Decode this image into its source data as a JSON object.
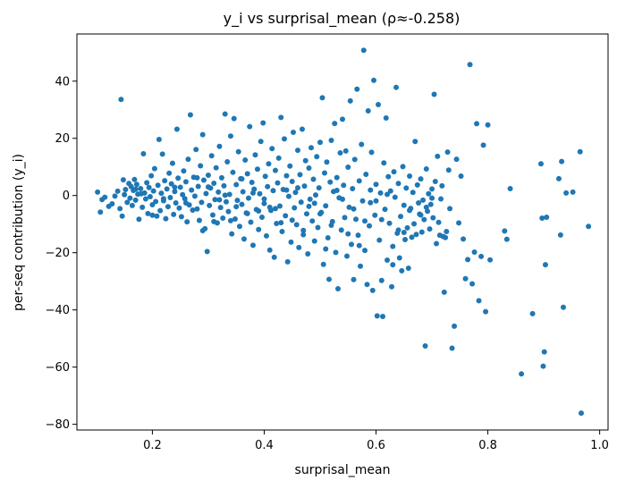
{
  "chart_data": {
    "type": "scatter",
    "title": "y_i vs surprisal_mean  (ρ≈-0.258)",
    "xlabel": "surprisal_mean",
    "ylabel": "per-seq contribution (y_i)",
    "xlim": [
      0.065,
      1.015
    ],
    "ylim": [
      -82,
      56.5
    ],
    "xticks": [
      0.2,
      0.4,
      0.6,
      0.8,
      1.0
    ],
    "xtick_labels": [
      "0.2",
      "0.4",
      "0.6",
      "0.8",
      "1.0"
    ],
    "yticks": [
      -80,
      -60,
      -40,
      -20,
      0,
      20,
      40
    ],
    "ytick_labels": [
      "−80",
      "−60",
      "−40",
      "−20",
      "0",
      "20",
      "40"
    ],
    "grid": false,
    "marker_color": "#1f77b4",
    "points": [
      [
        0.102,
        1.2
      ],
      [
        0.107,
        -5.8
      ],
      [
        0.11,
        -1.4
      ],
      [
        0.115,
        -0.6
      ],
      [
        0.122,
        -3.8
      ],
      [
        0.128,
        -2.9
      ],
      [
        0.133,
        -0.2
      ],
      [
        0.138,
        1.5
      ],
      [
        0.142,
        -4.6
      ],
      [
        0.144,
        33.6
      ],
      [
        0.146,
        -7.2
      ],
      [
        0.148,
        5.5
      ],
      [
        0.15,
        0.3
      ],
      [
        0.152,
        2.1
      ],
      [
        0.155,
        -2.4
      ],
      [
        0.158,
        4.2
      ],
      [
        0.16,
        -0.9
      ],
      [
        0.162,
        3.1
      ],
      [
        0.164,
        -3.5
      ],
      [
        0.166,
        1.8
      ],
      [
        0.168,
        5.6
      ],
      [
        0.17,
        -1.6
      ],
      [
        0.172,
        3.9
      ],
      [
        0.174,
        0.5
      ],
      [
        0.176,
        -8.3
      ],
      [
        0.179,
        2.4
      ],
      [
        0.182,
        -4.1
      ],
      [
        0.184,
        14.6
      ],
      [
        0.186,
        0.9
      ],
      [
        0.188,
        -1.2
      ],
      [
        0.19,
        4.5
      ],
      [
        0.192,
        -6.3
      ],
      [
        0.194,
        2.8
      ],
      [
        0.196,
        -0.4
      ],
      [
        0.198,
        6.9
      ],
      [
        0.2,
        -3.2
      ],
      [
        0.202,
        1.6
      ],
      [
        0.204,
        9.4
      ],
      [
        0.206,
        -2.1
      ],
      [
        0.208,
        -7.2
      ],
      [
        0.21,
        3.6
      ],
      [
        0.212,
        19.6
      ],
      [
        0.214,
        -5.3
      ],
      [
        0.216,
        0.8
      ],
      [
        0.218,
        14.5
      ],
      [
        0.22,
        -1.8
      ],
      [
        0.222,
        5.2
      ],
      [
        0.224,
        -8.1
      ],
      [
        0.226,
        2.3
      ],
      [
        0.228,
        -3.9
      ],
      [
        0.23,
        7.8
      ],
      [
        0.232,
        -0.7
      ],
      [
        0.234,
        4.1
      ],
      [
        0.236,
        11.3
      ],
      [
        0.238,
        -6.6
      ],
      [
        0.24,
        1.4
      ],
      [
        0.242,
        -2.6
      ],
      [
        0.244,
        23.2
      ],
      [
        0.246,
        6.1
      ],
      [
        0.248,
        -4.4
      ],
      [
        0.25,
        2.9
      ],
      [
        0.252,
        -7.4
      ],
      [
        0.254,
        0.3
      ],
      [
        0.256,
        8.6
      ],
      [
        0.258,
        -1.1
      ],
      [
        0.26,
        4.8
      ],
      [
        0.262,
        -9.2
      ],
      [
        0.264,
        12.7
      ],
      [
        0.266,
        -3.3
      ],
      [
        0.268,
        28.2
      ],
      [
        0.27,
        1.9
      ],
      [
        0.272,
        -5.1
      ],
      [
        0.274,
        6.4
      ],
      [
        0.276,
        -0.2
      ],
      [
        0.278,
        16.1
      ],
      [
        0.28,
        -4.7
      ],
      [
        0.282,
        3.2
      ],
      [
        0.284,
        -8.7
      ],
      [
        0.286,
        10.4
      ],
      [
        0.288,
        -2.4
      ],
      [
        0.29,
        21.3
      ],
      [
        0.292,
        5.4
      ],
      [
        0.294,
        -11.6
      ],
      [
        0.296,
        0.7
      ],
      [
        0.298,
        -19.6
      ],
      [
        0.3,
        7.1
      ],
      [
        0.302,
        -3.5
      ],
      [
        0.304,
        2.6
      ],
      [
        0.306,
        13.9
      ],
      [
        0.308,
        -6.8
      ],
      [
        0.31,
        4.3
      ],
      [
        0.312,
        -1.4
      ],
      [
        0.314,
        9.7
      ],
      [
        0.316,
        -9.6
      ],
      [
        0.318,
        1.2
      ],
      [
        0.32,
        17.2
      ],
      [
        0.322,
        -4.2
      ],
      [
        0.324,
        6.2
      ],
      [
        0.326,
        -7.9
      ],
      [
        0.328,
        3.4
      ],
      [
        0.33,
        28.5
      ],
      [
        0.332,
        -2.2
      ],
      [
        0.334,
        11.8
      ],
      [
        0.336,
        -5.6
      ],
      [
        0.338,
        0.4
      ],
      [
        0.34,
        20.8
      ],
      [
        0.342,
        -13.4
      ],
      [
        0.344,
        8.1
      ],
      [
        0.346,
        26.9
      ],
      [
        0.348,
        -8.2
      ],
      [
        0.35,
        3.8
      ],
      [
        0.352,
        -1.7
      ],
      [
        0.354,
        15.3
      ],
      [
        0.356,
        -10.8
      ],
      [
        0.358,
        5.9
      ],
      [
        0.36,
        -3.1
      ],
      [
        0.362,
        1.3
      ],
      [
        0.364,
        -15.2
      ],
      [
        0.366,
        12.4
      ],
      [
        0.368,
        -6.1
      ],
      [
        0.37,
        7.6
      ],
      [
        0.372,
        -0.9
      ],
      [
        0.374,
        24.1
      ],
      [
        0.376,
        -9.3
      ],
      [
        0.378,
        4.6
      ],
      [
        0.38,
        -17.4
      ],
      [
        0.382,
        2.2
      ],
      [
        0.384,
        14.2
      ],
      [
        0.386,
        -4.9
      ],
      [
        0.388,
        9.2
      ],
      [
        0.39,
        -11.9
      ],
      [
        0.392,
        0.6
      ],
      [
        0.394,
        18.9
      ],
      [
        0.396,
        -7.6
      ],
      [
        0.398,
        25.4
      ],
      [
        0.4,
        -2.8
      ],
      [
        0.402,
        6.7
      ],
      [
        0.404,
        -14.1
      ],
      [
        0.406,
        3.1
      ],
      [
        0.408,
        11.1
      ],
      [
        0.41,
        -19.1
      ],
      [
        0.412,
        -5.2
      ],
      [
        0.414,
        16.4
      ],
      [
        0.416,
        1.7
      ],
      [
        0.418,
        -21.6
      ],
      [
        0.42,
        8.8
      ],
      [
        0.422,
        -9.8
      ],
      [
        0.424,
        4.4
      ],
      [
        0.426,
        13.1
      ],
      [
        0.428,
        -3.7
      ],
      [
        0.43,
        27.3
      ],
      [
        0.432,
        -12.6
      ],
      [
        0.434,
        2.1
      ],
      [
        0.436,
        19.8
      ],
      [
        0.438,
        -7.1
      ],
      [
        0.44,
        6.9
      ],
      [
        0.442,
        -23.2
      ],
      [
        0.444,
        -0.3
      ],
      [
        0.446,
        10.3
      ],
      [
        0.448,
        -16.3
      ],
      [
        0.45,
        4.9
      ],
      [
        0.452,
        22.1
      ],
      [
        0.454,
        -4.3
      ],
      [
        0.456,
        1.1
      ],
      [
        0.458,
        -10.2
      ],
      [
        0.46,
        15.8
      ],
      [
        0.462,
        -18.2
      ],
      [
        0.464,
        7.3
      ],
      [
        0.466,
        -2.3
      ],
      [
        0.468,
        23.2
      ],
      [
        0.47,
        -13.7
      ],
      [
        0.472,
        3.3
      ],
      [
        0.474,
        12.2
      ],
      [
        0.476,
        -6.4
      ],
      [
        0.478,
        -20.4
      ],
      [
        0.48,
        9.6
      ],
      [
        0.482,
        -1.3
      ],
      [
        0.484,
        16.7
      ],
      [
        0.486,
        -8.9
      ],
      [
        0.488,
        5.7
      ],
      [
        0.49,
        -15.9
      ],
      [
        0.492,
        0.2
      ],
      [
        0.494,
        13.6
      ],
      [
        0.496,
        -11.2
      ],
      [
        0.498,
        2.7
      ],
      [
        0.5,
        18.6
      ],
      [
        0.502,
        -5.9
      ],
      [
        0.504,
        34.2
      ],
      [
        0.506,
        -24.1
      ],
      [
        0.508,
        7.9
      ],
      [
        0.51,
        -3.6
      ],
      [
        0.512,
        11.7
      ],
      [
        0.514,
        -14.8
      ],
      [
        0.516,
        -29.3
      ],
      [
        0.518,
        4.7
      ],
      [
        0.52,
        19.3
      ],
      [
        0.522,
        -9.1
      ],
      [
        0.524,
        1.4
      ],
      [
        0.526,
        25.2
      ],
      [
        0.528,
        -19.9
      ],
      [
        0.53,
        6.3
      ],
      [
        0.532,
        -32.6
      ],
      [
        0.534,
        -0.8
      ],
      [
        0.536,
        14.9
      ],
      [
        0.538,
        -12.1
      ],
      [
        0.54,
        26.7
      ],
      [
        0.542,
        3.6
      ],
      [
        0.544,
        -7.7
      ],
      [
        0.546,
        15.6
      ],
      [
        0.548,
        -21.2
      ],
      [
        0.55,
        9.9
      ],
      [
        0.552,
        -4.1
      ],
      [
        0.554,
        33.1
      ],
      [
        0.556,
        -17.1
      ],
      [
        0.558,
        2.4
      ],
      [
        0.56,
        -29.4
      ],
      [
        0.562,
        12.6
      ],
      [
        0.564,
        -8.3
      ],
      [
        0.566,
        37.2
      ],
      [
        0.568,
        -13.9
      ],
      [
        0.57,
        5.1
      ],
      [
        0.572,
        -24.7
      ],
      [
        0.574,
        17.9
      ],
      [
        0.576,
        -1.9
      ],
      [
        0.578,
        50.8
      ],
      [
        0.58,
        -19.2
      ],
      [
        0.582,
        7.4
      ],
      [
        0.584,
        -31.1
      ],
      [
        0.586,
        29.6
      ],
      [
        0.588,
        -10.6
      ],
      [
        0.59,
        1.9
      ],
      [
        0.592,
        15.1
      ],
      [
        0.594,
        -33.2
      ],
      [
        0.596,
        40.3
      ],
      [
        0.598,
        -6.9
      ],
      [
        0.6,
        3.9
      ],
      [
        0.602,
        -42.1
      ],
      [
        0.604,
        31.8
      ],
      [
        0.606,
        -15.6
      ],
      [
        0.608,
        0.9
      ],
      [
        0.61,
        -29.7
      ],
      [
        0.612,
        -42.3
      ],
      [
        0.614,
        11.4
      ],
      [
        0.616,
        -4.8
      ],
      [
        0.618,
        27.1
      ],
      [
        0.62,
        -22.6
      ],
      [
        0.622,
        6.6
      ],
      [
        0.624,
        -9.7
      ],
      [
        0.626,
        1.6
      ],
      [
        0.628,
        -31.9
      ],
      [
        0.63,
        -17.8
      ],
      [
        0.632,
        8.3
      ],
      [
        0.634,
        -0.6
      ],
      [
        0.636,
        37.8
      ],
      [
        0.638,
        -13.2
      ],
      [
        0.64,
        4.2
      ],
      [
        0.642,
        -21.8
      ],
      [
        0.644,
        -7.3
      ],
      [
        0.646,
        -26.3
      ],
      [
        0.648,
        10.1
      ],
      [
        0.65,
        -3.4
      ],
      [
        0.652,
        -15.4
      ],
      [
        0.654,
        2.6
      ],
      [
        0.656,
        -11.3
      ],
      [
        0.658,
        -25.4
      ],
      [
        0.66,
        6.8
      ],
      [
        0.662,
        -4.5
      ],
      [
        0.664,
        -14.6
      ],
      [
        0.666,
        1.1
      ],
      [
        0.668,
        -9.9
      ],
      [
        0.67,
        18.9
      ],
      [
        0.672,
        -13.6
      ],
      [
        0.674,
        3.7
      ],
      [
        0.676,
        -2.6
      ],
      [
        0.678,
        -6.5
      ],
      [
        0.68,
        5.8
      ],
      [
        0.682,
        -12.8
      ],
      [
        0.684,
        -1.6
      ],
      [
        0.686,
        -8.4
      ],
      [
        0.688,
        -52.6
      ],
      [
        0.69,
        9.3
      ],
      [
        0.692,
        -5.5
      ],
      [
        0.694,
        0.6
      ],
      [
        0.696,
        -11.7
      ],
      [
        0.698,
        -3.1
      ],
      [
        0.7,
        2.3
      ],
      [
        0.702,
        -7.8
      ],
      [
        0.704,
        35.4
      ],
      [
        0.706,
        4.9
      ],
      [
        0.708,
        -16.8
      ],
      [
        0.71,
        13.7
      ],
      [
        0.712,
        -9.4
      ],
      [
        0.714,
        -13.9
      ],
      [
        0.716,
        -1.2
      ],
      [
        0.718,
        3.4
      ],
      [
        0.72,
        -14.3
      ],
      [
        0.722,
        -33.8
      ],
      [
        0.724,
        -14.7
      ],
      [
        0.726,
        -12.6
      ],
      [
        0.728,
        15.2
      ],
      [
        0.73,
        8.9
      ],
      [
        0.732,
        -4.6
      ],
      [
        0.736,
        -53.4
      ],
      [
        0.74,
        -45.7
      ],
      [
        0.744,
        12.7
      ],
      [
        0.748,
        -9.6
      ],
      [
        0.752,
        6.8
      ],
      [
        0.756,
        -15.2
      ],
      [
        0.76,
        -29.1
      ],
      [
        0.764,
        -22.4
      ],
      [
        0.768,
        45.8
      ],
      [
        0.772,
        -30.9
      ],
      [
        0.776,
        -19.8
      ],
      [
        0.78,
        25.1
      ],
      [
        0.784,
        -36.8
      ],
      [
        0.788,
        -21.3
      ],
      [
        0.792,
        17.6
      ],
      [
        0.796,
        -40.6
      ],
      [
        0.8,
        24.7
      ],
      [
        0.804,
        -22.5
      ],
      [
        0.83,
        -12.4
      ],
      [
        0.834,
        -15.3
      ],
      [
        0.84,
        2.4
      ],
      [
        0.86,
        -62.4
      ],
      [
        0.88,
        -41.3
      ],
      [
        0.895,
        11.1
      ],
      [
        0.897,
        -7.9
      ],
      [
        0.899,
        -59.7
      ],
      [
        0.901,
        -54.7
      ],
      [
        0.903,
        -24.2
      ],
      [
        0.905,
        -7.6
      ],
      [
        0.927,
        5.9
      ],
      [
        0.93,
        -13.8
      ],
      [
        0.932,
        11.9
      ],
      [
        0.935,
        -39.1
      ],
      [
        0.94,
        0.9
      ],
      [
        0.952,
        1.2
      ],
      [
        0.965,
        15.3
      ],
      [
        0.967,
        -76.1
      ],
      [
        0.98,
        -10.8
      ],
      [
        0.26,
        -2.6
      ],
      [
        0.3,
        3.0
      ],
      [
        0.34,
        -8.8
      ],
      [
        0.38,
        0.9
      ],
      [
        0.42,
        -4.6
      ],
      [
        0.46,
        2.7
      ],
      [
        0.5,
        -6.4
      ],
      [
        0.54,
        -1.3
      ],
      [
        0.58,
        -8.9
      ],
      [
        0.62,
        0.4
      ],
      [
        0.66,
        -5.2
      ],
      [
        0.7,
        -0.9
      ],
      [
        0.36,
        5.8
      ],
      [
        0.4,
        -1.2
      ],
      [
        0.44,
        1.9
      ],
      [
        0.48,
        -3.8
      ],
      [
        0.52,
        -10.4
      ],
      [
        0.56,
        -4.7
      ],
      [
        0.6,
        -1.9
      ],
      [
        0.64,
        -12.1
      ],
      [
        0.68,
        -6.8
      ],
      [
        0.32,
        -1.5
      ],
      [
        0.28,
        6.2
      ],
      [
        0.24,
        2.9
      ],
      [
        0.22,
        -1.1
      ],
      [
        0.2,
        -6.9
      ],
      [
        0.18,
        0.6
      ],
      [
        0.17,
        2.2
      ],
      [
        0.29,
        -12.3
      ],
      [
        0.33,
        0.1
      ],
      [
        0.37,
        -6.3
      ],
      [
        0.41,
        -4.1
      ],
      [
        0.45,
        -8.6
      ],
      [
        0.49,
        -2.7
      ],
      [
        0.53,
        1.8
      ],
      [
        0.57,
        -17.5
      ],
      [
        0.61,
        -8.4
      ],
      [
        0.65,
        -12.9
      ],
      [
        0.69,
        -4.1
      ],
      [
        0.55,
        -13.4
      ],
      [
        0.59,
        -2.5
      ],
      [
        0.63,
        -24.2
      ],
      [
        0.51,
        -18.7
      ],
      [
        0.47,
        -12.2
      ],
      [
        0.43,
        -9.5
      ],
      [
        0.39,
        -5.4
      ],
      [
        0.35,
        -3.9
      ],
      [
        0.31,
        -9.1
      ]
    ]
  }
}
